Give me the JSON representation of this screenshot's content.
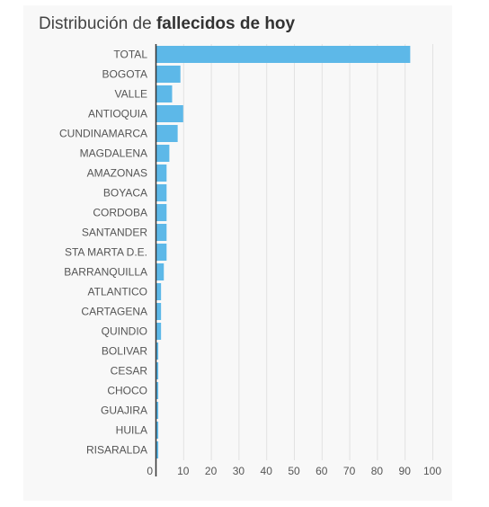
{
  "chart_data": {
    "type": "bar",
    "orientation": "horizontal",
    "title_prefix": "Distribución de",
    "title_bold": "fallecidos de hoy",
    "categories": [
      "TOTAL",
      "BOGOTA",
      "VALLE",
      "ANTIOQUIA",
      "CUNDINAMARCA",
      "MAGDALENA",
      "AMAZONAS",
      "BOYACA",
      "CORDOBA",
      "SANTANDER",
      "STA MARTA D.E.",
      "BARRANQUILLA",
      "ATLANTICO",
      "CARTAGENA",
      "QUINDIO",
      "BOLIVAR",
      "CESAR",
      "CHOCO",
      "GUAJIRA",
      "HUILA",
      "RISARALDA"
    ],
    "values": [
      92,
      9,
      6,
      10,
      8,
      5,
      4,
      4,
      4,
      4,
      4,
      3,
      2,
      2,
      2,
      1,
      1,
      1,
      1,
      1,
      1
    ],
    "xlim": [
      0,
      100
    ],
    "xticks": [
      "0",
      "10",
      "20",
      "30",
      "40",
      "50",
      "60",
      "70",
      "80",
      "90",
      "100"
    ],
    "grid": true,
    "bar_color": "#5db8e8"
  }
}
